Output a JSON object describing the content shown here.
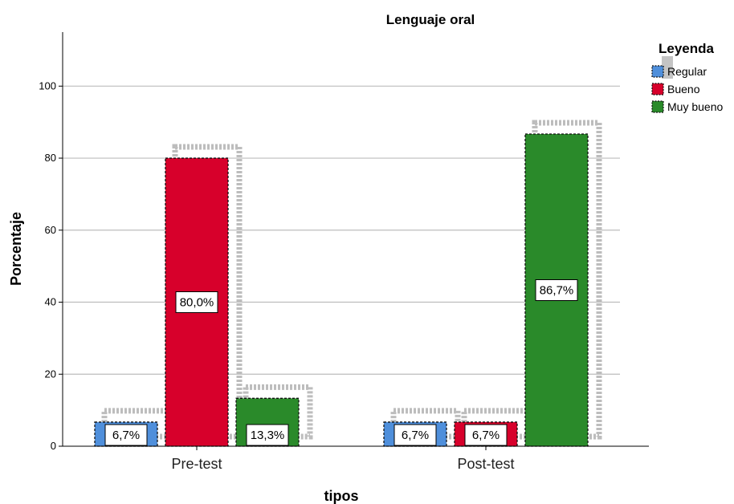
{
  "chart_data": {
    "type": "bar",
    "title": "Lenguaje oral",
    "xlabel": "tipos",
    "ylabel": "Porcentaje",
    "categories": [
      "Pre-test",
      "Post-test"
    ],
    "series": [
      {
        "name": "Regular",
        "values": [
          6.7,
          6.7
        ],
        "labels": [
          "6,7%",
          "6,7%"
        ],
        "color": "#4f8fdb"
      },
      {
        "name": "Bueno",
        "values": [
          80.0,
          6.7
        ],
        "labels": [
          "80,0%",
          "6,7%"
        ],
        "color": "#d7002b"
      },
      {
        "name": "Muy bueno",
        "values": [
          13.3,
          86.7
        ],
        "labels": [
          "13,3%",
          "86,7%"
        ],
        "color": "#2a8a2a"
      }
    ],
    "ylim": [
      0,
      115
    ],
    "yticks": [
      0,
      20,
      40,
      60,
      80,
      100
    ],
    "grid": true,
    "legend_title": "Leyenda",
    "legend_position": "top-right"
  }
}
